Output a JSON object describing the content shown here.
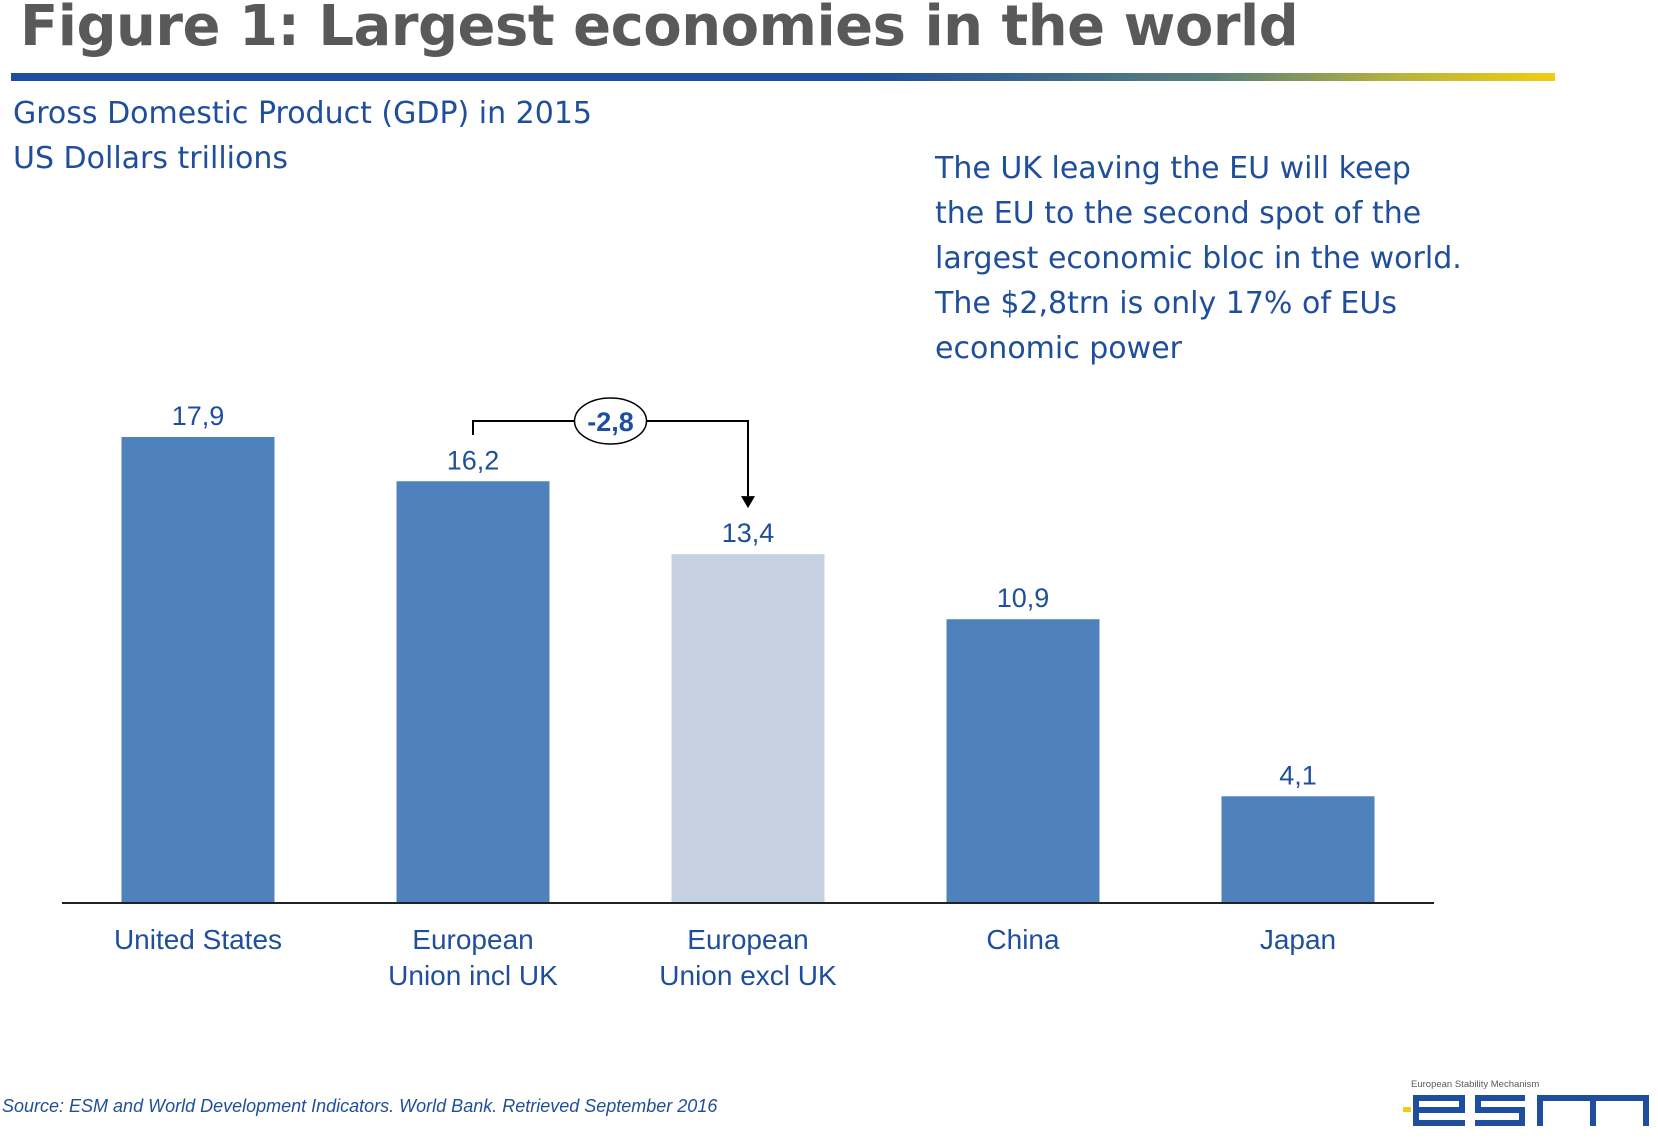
{
  "header": {
    "title": "Figure 1: Largest economies in the world",
    "subtitle_line1": "Gross Domestic Product (GDP) in 2015",
    "subtitle_line2": "US Dollars trillions"
  },
  "annotation": {
    "lines": [
      "The UK leaving the EU will keep",
      "the EU to the second spot of the",
      "largest economic bloc in the world.",
      "The $2,8trn is only 17% of EUs",
      "economic power"
    ]
  },
  "footer": {
    "source": "Source: ESM and  World Development Indicators. World Bank. Retrieved September 2016",
    "logo_caption": "European Stability Mechanism",
    "logo_text": "esm"
  },
  "colors": {
    "bar": "#4f81bd",
    "bar_highlight": "#c5d0e1",
    "text": "#1f4e9c",
    "title": "#595959"
  },
  "chart_data": {
    "type": "bar",
    "categories": [
      [
        "United States"
      ],
      [
        "European",
        "Union incl UK"
      ],
      [
        "European",
        "Union excl UK"
      ],
      [
        "China"
      ],
      [
        "Japan"
      ]
    ],
    "values": [
      17.9,
      16.2,
      13.4,
      10.9,
      4.1
    ],
    "value_labels": [
      "17,9",
      "16,2",
      "13,4",
      "10,9",
      "4,1"
    ],
    "highlighted_index": 2,
    "difference": {
      "from_index": 1,
      "to_index": 2,
      "label": "-2,8"
    },
    "ylim": [
      0,
      17.9
    ],
    "grid": false,
    "legend": "none"
  }
}
